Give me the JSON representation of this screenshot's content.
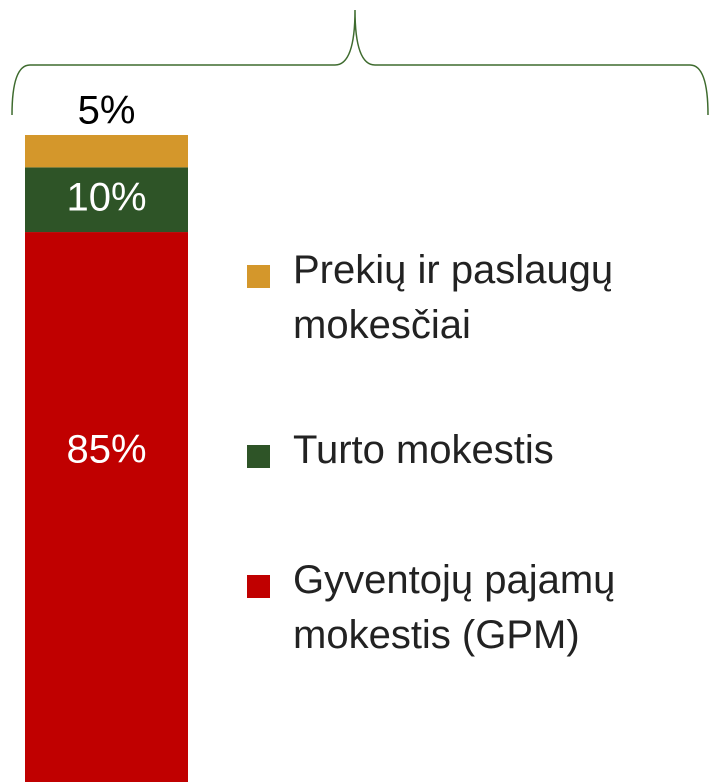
{
  "chart_data": {
    "type": "stacked_bar",
    "series": [
      {
        "name": "Gyventojų pajamų mokestis (GPM)",
        "color": "#c00000",
        "values": [
          85
        ],
        "value_labels": [
          "85%"
        ]
      },
      {
        "name": "Turto mokestis",
        "color": "#2e5427",
        "values": [
          10
        ],
        "value_labels": [
          "10%"
        ]
      },
      {
        "name": "Prekių ir paslaugų mokesčiai",
        "color": "#d4972b",
        "values": [
          5
        ],
        "value_labels": [
          "5%"
        ]
      }
    ]
  }
}
